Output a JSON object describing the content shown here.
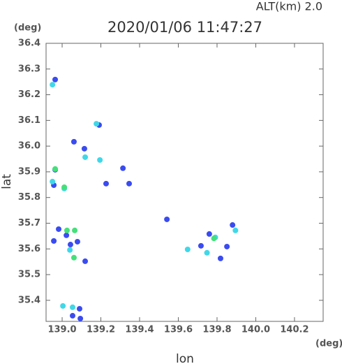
{
  "chart_data": {
    "type": "scatter",
    "title": "2020/01/06 11:47:27",
    "subtitle": "ALT(km) 2.0",
    "y_unit": "(deg)",
    "x_unit": "(deg)",
    "x_label": "lon",
    "y_label": "lat",
    "xlim": [
      138.917,
      140.348
    ],
    "ylim": [
      35.318,
      36.4
    ],
    "xticks": [
      {
        "value": 139.0,
        "label": "139.0"
      },
      {
        "value": 139.2,
        "label": "139.2"
      },
      {
        "value": 139.4,
        "label": "139.4"
      },
      {
        "value": 139.6,
        "label": "139.6"
      },
      {
        "value": 139.8,
        "label": "139.8"
      },
      {
        "value": 140.0,
        "label": "140.0"
      },
      {
        "value": 140.2,
        "label": "140.2"
      }
    ],
    "yticks": [
      35.4,
      35.5,
      35.6,
      35.7,
      35.8,
      35.9,
      {
        "value": 36.0,
        "label": "36.0"
      },
      36.1,
      36.2,
      36.3,
      36.4
    ],
    "series": [
      {
        "color": "#3a4cf0",
        "x": [
          138.964,
          138.964,
          138.957,
          139.061,
          139.115,
          139.314,
          139.346,
          139.227,
          138.982,
          139.022,
          138.957,
          139.043,
          139.079,
          139.119,
          139.054,
          139.09,
          139.094,
          139.541,
          139.76,
          139.818,
          139.88,
          139.717,
          139.191,
          139.851
        ],
        "values": [
          36.259,
          35.908,
          35.848,
          36.017,
          35.99,
          35.914,
          35.854,
          35.854,
          35.677,
          35.653,
          35.631,
          35.617,
          35.628,
          35.552,
          35.34,
          35.367,
          35.329,
          35.715,
          35.658,
          35.563,
          35.693,
          35.612,
          36.082,
          35.609
        ]
      },
      {
        "color": "#40d8e8",
        "x": [
          138.95,
          139.004,
          139.054,
          139.119,
          139.195,
          139.177,
          139.04,
          139.748,
          139.895,
          139.648,
          139.791,
          139.011,
          138.95
        ],
        "values": [
          36.239,
          35.378,
          35.373,
          35.957,
          35.946,
          36.087,
          35.596,
          35.585,
          35.672,
          35.598,
          35.645,
          35.835,
          35.862
        ]
      },
      {
        "color": "#44e07a",
        "x": [
          138.964,
          139.011,
          139.061,
          139.025,
          139.784,
          139.065
        ],
        "values": [
          35.911,
          35.84,
          35.566,
          35.672,
          35.641,
          35.672
        ]
      }
    ]
  }
}
